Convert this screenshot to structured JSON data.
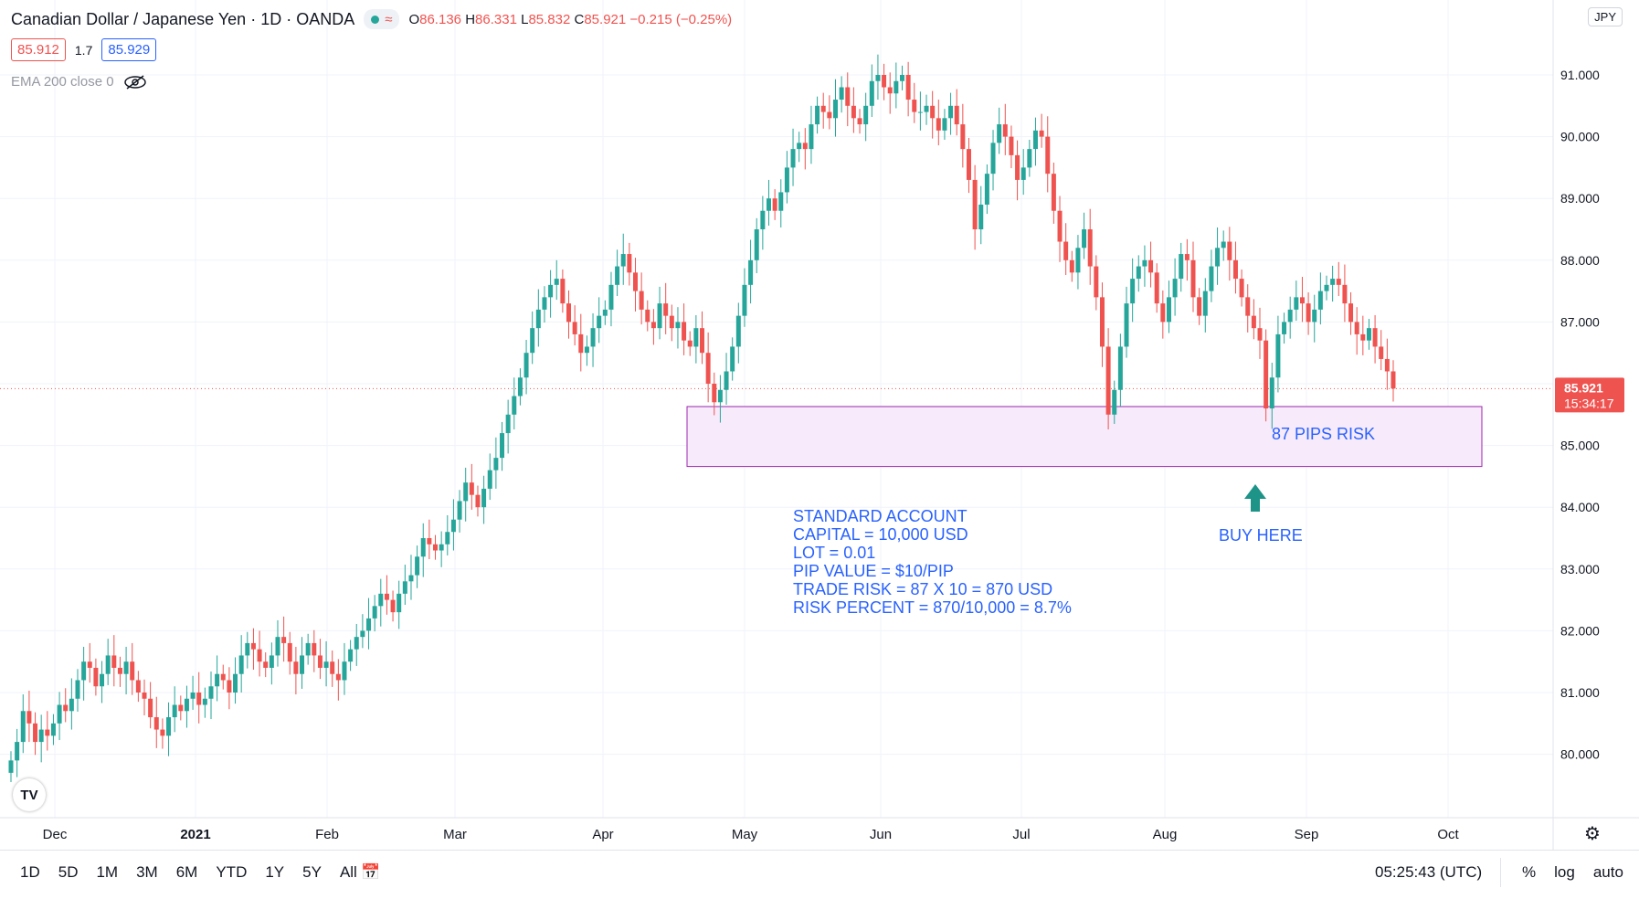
{
  "header": {
    "title": "Canadian Dollar / Japanese Yen · 1D · OANDA",
    "ohlc": {
      "o_label": "O",
      "o": "86.136",
      "h_label": "H",
      "h": "86.331",
      "l_label": "L",
      "l": "85.832",
      "c_label": "C",
      "c": "85.921",
      "change": "−0.215 (−0.25%)"
    },
    "sell_price": "85.912",
    "spread": "1.7",
    "buy_price": "85.929",
    "indicator": "EMA 200 close 0",
    "currency_button": "JPY"
  },
  "price_axis": {
    "ticks": [
      "91.000",
      "90.000",
      "89.000",
      "88.000",
      "87.000",
      "86.000",
      "85.000",
      "84.000",
      "83.000",
      "82.000",
      "81.000",
      "80.000"
    ],
    "current_price": "85.921",
    "countdown": "15:34:17"
  },
  "time_axis": {
    "ticks": [
      "Dec",
      "2021",
      "Feb",
      "Mar",
      "Apr",
      "May",
      "Jun",
      "Jul",
      "Aug",
      "Sep",
      "Oct"
    ]
  },
  "annotations": {
    "risk_label": "87 PIPS RISK",
    "buy_label": "BUY HERE",
    "notes": [
      "STANDARD ACCOUNT",
      "CAPITAL = 10,000 USD",
      "LOT = 0.01",
      "PIP VALUE = $10/PIP",
      "TRADE RISK = 87 X 10 = 870 USD",
      "RISK PERCENT = 870/10,000 = 8.7%"
    ]
  },
  "bottom_bar": {
    "ranges": [
      "1D",
      "5D",
      "1M",
      "3M",
      "6M",
      "YTD",
      "1Y",
      "5Y",
      "All"
    ],
    "clock": "05:25:43 (UTC)",
    "options": [
      "%",
      "log",
      "auto"
    ]
  },
  "colors": {
    "up": "#26a69a",
    "down": "#ef5350",
    "annotation": "#2962ff",
    "zone_fill": "#f7eafa",
    "zone_border": "#9c27b0",
    "grid": "#f0f3fa"
  },
  "chart_data": {
    "type": "candlestick",
    "ylim": [
      79.0,
      92.0
    ],
    "x_ticks": [
      "Dec",
      "2021",
      "Feb",
      "Mar",
      "Apr",
      "May",
      "Jun",
      "Jul",
      "Aug",
      "Sep",
      "Oct"
    ],
    "y_ticks": [
      80,
      81,
      82,
      83,
      84,
      85,
      86,
      87,
      88,
      89,
      90,
      91
    ],
    "current_price": 85.921,
    "risk_zone": {
      "from_date": "2021-04-20",
      "to_date": "2021-10-11",
      "top": 85.63,
      "bottom": 84.66
    },
    "buy_marker": {
      "date": "2021-08-20",
      "price": 84.66
    },
    "grid": true,
    "closes": [
      79.9,
      80.2,
      80.7,
      80.5,
      80.2,
      80.4,
      80.3,
      80.5,
      80.8,
      80.7,
      80.9,
      81.2,
      81.5,
      81.4,
      81.1,
      81.3,
      81.6,
      81.4,
      81.3,
      81.5,
      81.2,
      81.0,
      80.9,
      80.6,
      80.4,
      80.3,
      80.6,
      80.8,
      80.7,
      80.9,
      81.0,
      80.8,
      80.9,
      81.1,
      81.3,
      81.2,
      81.0,
      81.3,
      81.6,
      81.8,
      81.7,
      81.5,
      81.4,
      81.6,
      81.9,
      81.8,
      81.5,
      81.3,
      81.6,
      81.8,
      81.6,
      81.4,
      81.5,
      81.3,
      81.2,
      81.5,
      81.7,
      81.9,
      82.0,
      82.2,
      82.4,
      82.6,
      82.5,
      82.3,
      82.6,
      82.8,
      82.9,
      83.2,
      83.5,
      83.4,
      83.3,
      83.4,
      83.6,
      83.8,
      84.1,
      84.4,
      84.2,
      84.0,
      84.3,
      84.6,
      84.8,
      85.2,
      85.5,
      85.8,
      86.1,
      86.5,
      86.9,
      87.2,
      87.4,
      87.6,
      87.7,
      87.3,
      87.0,
      86.8,
      86.5,
      86.6,
      86.9,
      87.1,
      87.2,
      87.6,
      87.9,
      88.1,
      87.8,
      87.5,
      87.2,
      87.0,
      86.9,
      87.3,
      87.1,
      86.9,
      87.0,
      86.7,
      86.6,
      86.9,
      86.5,
      86.0,
      85.7,
      85.9,
      86.2,
      86.6,
      87.1,
      87.6,
      88.0,
      88.5,
      88.8,
      89.0,
      88.8,
      89.1,
      89.5,
      89.8,
      89.9,
      89.8,
      90.2,
      90.5,
      90.4,
      90.3,
      90.6,
      90.8,
      90.5,
      90.3,
      90.2,
      90.5,
      90.9,
      91.0,
      90.8,
      90.7,
      90.9,
      91.0,
      90.6,
      90.4,
      90.4,
      90.5,
      90.3,
      90.1,
      90.3,
      90.5,
      90.2,
      89.8,
      89.3,
      88.5,
      88.9,
      89.4,
      89.9,
      90.2,
      90.0,
      89.7,
      89.3,
      89.5,
      89.8,
      90.1,
      90.0,
      89.4,
      88.8,
      88.3,
      88.0,
      87.8,
      88.2,
      88.5,
      87.9,
      87.4,
      86.6,
      85.5,
      85.9,
      86.6,
      87.3,
      87.7,
      87.9,
      88.0,
      87.8,
      87.3,
      87.0,
      87.4,
      87.7,
      88.1,
      88.0,
      87.4,
      87.1,
      87.5,
      87.9,
      88.2,
      88.3,
      88.0,
      87.7,
      87.4,
      87.1,
      86.9,
      86.7,
      85.6,
      86.1,
      86.8,
      87.0,
      87.2,
      87.4,
      87.3,
      87.0,
      87.2,
      87.5,
      87.6,
      87.7,
      87.6,
      87.3,
      87.0,
      86.8,
      86.7,
      86.9,
      86.6,
      86.4,
      86.2,
      85.921
    ]
  }
}
